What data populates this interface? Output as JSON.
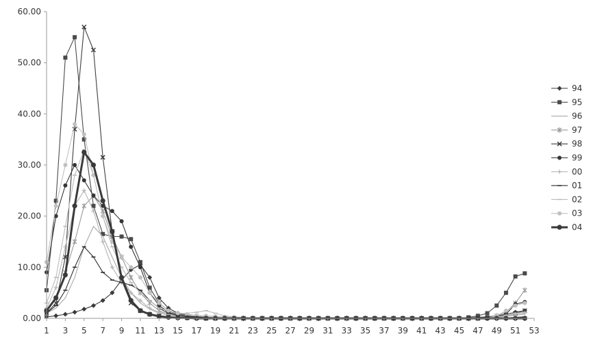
{
  "chart_data": {
    "type": "line",
    "title": "",
    "xlabel": "",
    "ylabel": "",
    "x": [
      1,
      2,
      3,
      4,
      5,
      6,
      7,
      8,
      9,
      10,
      11,
      12,
      13,
      14,
      15,
      16,
      17,
      18,
      19,
      20,
      21,
      22,
      23,
      24,
      25,
      26,
      27,
      28,
      29,
      30,
      31,
      32,
      33,
      34,
      35,
      36,
      37,
      38,
      39,
      40,
      41,
      42,
      43,
      44,
      45,
      46,
      47,
      48,
      49,
      50,
      51,
      52
    ],
    "x_tick_labels": [
      "1",
      "3",
      "5",
      "7",
      "9",
      "11",
      "13",
      "15",
      "17",
      "19",
      "21",
      "23",
      "25",
      "27",
      "29",
      "31",
      "33",
      "35",
      "37",
      "39",
      "41",
      "43",
      "45",
      "47",
      "49",
      "51",
      "53"
    ],
    "y_tick_labels": [
      "0.00",
      "10.00",
      "20.00",
      "30.00",
      "40.00",
      "50.00",
      "60.00"
    ],
    "xlim": [
      1,
      53
    ],
    "ylim": [
      0,
      60
    ],
    "grid": false,
    "legend_position": "right",
    "series": [
      {
        "name": "94",
        "color": "#3a3a3a",
        "marker": "diamond",
        "values": [
          0.3,
          0.5,
          0.8,
          1.2,
          1.8,
          2.5,
          3.5,
          5.0,
          7.5,
          9.5,
          10.5,
          8.0,
          4.0,
          2.0,
          1.0,
          0.6,
          0.4,
          0.3,
          0.2,
          0.1,
          0.1,
          0.05,
          0.05,
          0,
          0,
          0,
          0,
          0,
          0,
          0,
          0,
          0,
          0,
          0,
          0,
          0,
          0,
          0,
          0,
          0,
          0,
          0,
          0,
          0,
          0,
          0.1,
          0.2,
          0.3,
          0.5,
          0.8,
          1.2,
          1.5
        ]
      },
      {
        "name": "95",
        "color": "#4a4a4a",
        "marker": "square",
        "values": [
          5.5,
          23.0,
          51.0,
          55.0,
          35.0,
          22.0,
          16.5,
          16.0,
          16.0,
          15.5,
          11.0,
          6.0,
          3.0,
          1.5,
          0.8,
          0.5,
          0.3,
          0.2,
          0.1,
          0.1,
          0.05,
          0,
          0,
          0,
          0,
          0,
          0,
          0,
          0,
          0,
          0,
          0,
          0,
          0,
          0,
          0,
          0,
          0,
          0,
          0,
          0,
          0,
          0,
          0,
          0,
          0.2,
          0.5,
          1.0,
          2.5,
          5.0,
          8.2,
          8.8
        ]
      },
      {
        "name": "96",
        "color": "#a8a8a8",
        "marker": "none",
        "values": [
          1.0,
          2.0,
          4.0,
          8.0,
          14.0,
          18.0,
          16.0,
          12.0,
          8.0,
          5.0,
          3.0,
          1.8,
          1.0,
          0.6,
          0.4,
          0.3,
          0.2,
          0.1,
          0.1,
          0,
          0,
          0,
          0,
          0,
          0,
          0,
          0,
          0,
          0,
          0,
          0,
          0,
          0,
          0,
          0,
          0,
          0,
          0,
          0,
          0,
          0,
          0,
          0,
          0,
          0,
          0,
          0,
          0.1,
          0.2,
          0.4,
          0.6,
          0.8
        ]
      },
      {
        "name": "97",
        "color": "#9a9a9a",
        "marker": "star",
        "values": [
          1.5,
          4.0,
          9.0,
          15.0,
          22.0,
          24.0,
          21.0,
          16.0,
          12.0,
          8.0,
          5.0,
          3.0,
          1.5,
          0.8,
          0.5,
          0.3,
          0.2,
          0.1,
          0.1,
          0,
          0,
          0,
          0,
          0,
          0,
          0,
          0,
          0,
          0,
          0,
          0,
          0,
          0,
          0,
          0,
          0,
          0,
          0,
          0,
          0,
          0,
          0,
          0,
          0,
          0,
          0,
          0,
          0.1,
          0.5,
          1.2,
          3.0,
          5.5
        ]
      },
      {
        "name": "98",
        "color": "#3d3d3d",
        "marker": "x",
        "values": [
          1.0,
          3.0,
          12.0,
          37.0,
          57.0,
          52.5,
          31.5,
          17.0,
          7.5,
          3.0,
          1.5,
          0.8,
          0.5,
          0.3,
          0.2,
          0.1,
          0.1,
          0,
          0,
          0,
          0,
          0,
          0,
          0,
          0,
          0,
          0,
          0,
          0,
          0,
          0,
          0,
          0,
          0,
          0,
          0,
          0,
          0,
          0,
          0,
          0,
          0,
          0,
          0,
          0,
          0,
          0,
          0.1,
          0.2,
          0.5,
          1.0,
          1.5
        ]
      },
      {
        "name": "99",
        "color": "#353535",
        "marker": "circle",
        "values": [
          9.0,
          20.0,
          26.0,
          30.0,
          27.0,
          24.0,
          22.0,
          21.0,
          19.0,
          14.0,
          10.0,
          5.0,
          2.5,
          1.2,
          0.6,
          0.4,
          0.2,
          0.1,
          0.1,
          0,
          0,
          0,
          0,
          0,
          0,
          0,
          0,
          0,
          0,
          0,
          0,
          0,
          0,
          0,
          0,
          0,
          0,
          0,
          0,
          0,
          0,
          0,
          0,
          0,
          0,
          0,
          0,
          0.1,
          0.3,
          0.8,
          2.8,
          3.2
        ]
      },
      {
        "name": "00",
        "color": "#b5b5b5",
        "marker": "plus",
        "values": [
          2.0,
          6.0,
          14.0,
          22.0,
          25.0,
          21.0,
          15.0,
          10.0,
          7.0,
          5.0,
          3.5,
          2.0,
          1.2,
          0.8,
          0.6,
          0.5,
          0.4,
          0.3,
          0.2,
          0.1,
          0.1,
          0,
          0,
          0,
          0,
          0,
          0,
          0,
          0,
          0,
          0,
          0,
          0,
          0,
          0,
          0,
          0,
          0,
          0,
          0,
          0,
          0,
          0,
          0,
          0,
          0,
          0,
          0.1,
          0.2,
          0.5,
          0.8,
          1.0
        ]
      },
      {
        "name": "01",
        "color": "#2e2e2e",
        "marker": "dash",
        "values": [
          1.0,
          2.5,
          5.5,
          10.0,
          14.0,
          12.0,
          9.0,
          7.5,
          7.0,
          6.5,
          5.5,
          3.5,
          2.0,
          1.0,
          0.6,
          0.4,
          0.3,
          0.2,
          0.1,
          0.1,
          0,
          0,
          0,
          0,
          0,
          0,
          0,
          0,
          0,
          0,
          0,
          0,
          0,
          0,
          0,
          0,
          0,
          0,
          0,
          0,
          0,
          0,
          0,
          0,
          0,
          0,
          0,
          0,
          0.1,
          0.1,
          0.2,
          0.3
        ]
      },
      {
        "name": "02",
        "color": "#bbbbbb",
        "marker": "dash",
        "values": [
          3.0,
          8.0,
          18.0,
          28.0,
          33.0,
          28.0,
          20.0,
          14.0,
          10.0,
          7.0,
          5.0,
          3.5,
          2.0,
          1.5,
          1.0,
          1.0,
          1.2,
          1.5,
          1.0,
          0.5,
          0.3,
          0.2,
          0.1,
          0,
          0,
          0,
          0,
          0,
          0,
          0,
          0,
          0,
          0,
          0,
          0,
          0,
          0,
          0,
          0,
          0,
          0,
          0,
          0,
          0,
          0,
          0,
          0,
          0.1,
          0.3,
          0.6,
          1.0,
          1.2
        ]
      },
      {
        "name": "03",
        "color": "#c0c0c0",
        "marker": "circle",
        "values": [
          11.0,
          22.0,
          30.0,
          38.0,
          36.0,
          28.0,
          20.0,
          15.0,
          12.0,
          10.0,
          8.0,
          5.0,
          3.0,
          1.5,
          1.0,
          0.8,
          0.6,
          0.5,
          0.4,
          0.3,
          0.2,
          0.1,
          0,
          0,
          0,
          0,
          0,
          0,
          0,
          0,
          0,
          0,
          0,
          0,
          0,
          0,
          0,
          0,
          0,
          0,
          0,
          0,
          0,
          0,
          0,
          0,
          0,
          0.1,
          0.5,
          1.5,
          2.5,
          3.0
        ]
      },
      {
        "name": "04",
        "color": "#3a3a3a",
        "marker": "circle",
        "thick": true,
        "values": [
          1.5,
          4.0,
          8.5,
          22.0,
          32.5,
          30.0,
          23.0,
          17.0,
          8.0,
          3.5,
          1.5,
          0.8,
          0.4,
          0.2,
          0.1,
          0.1,
          0,
          0,
          0,
          0,
          0,
          0,
          0,
          0,
          0,
          0,
          0,
          0,
          0,
          0,
          0,
          0,
          0,
          0,
          0,
          0,
          0,
          0,
          0,
          0,
          0,
          0,
          0,
          0,
          0,
          0,
          0,
          0,
          0,
          0,
          0,
          0
        ]
      }
    ]
  }
}
